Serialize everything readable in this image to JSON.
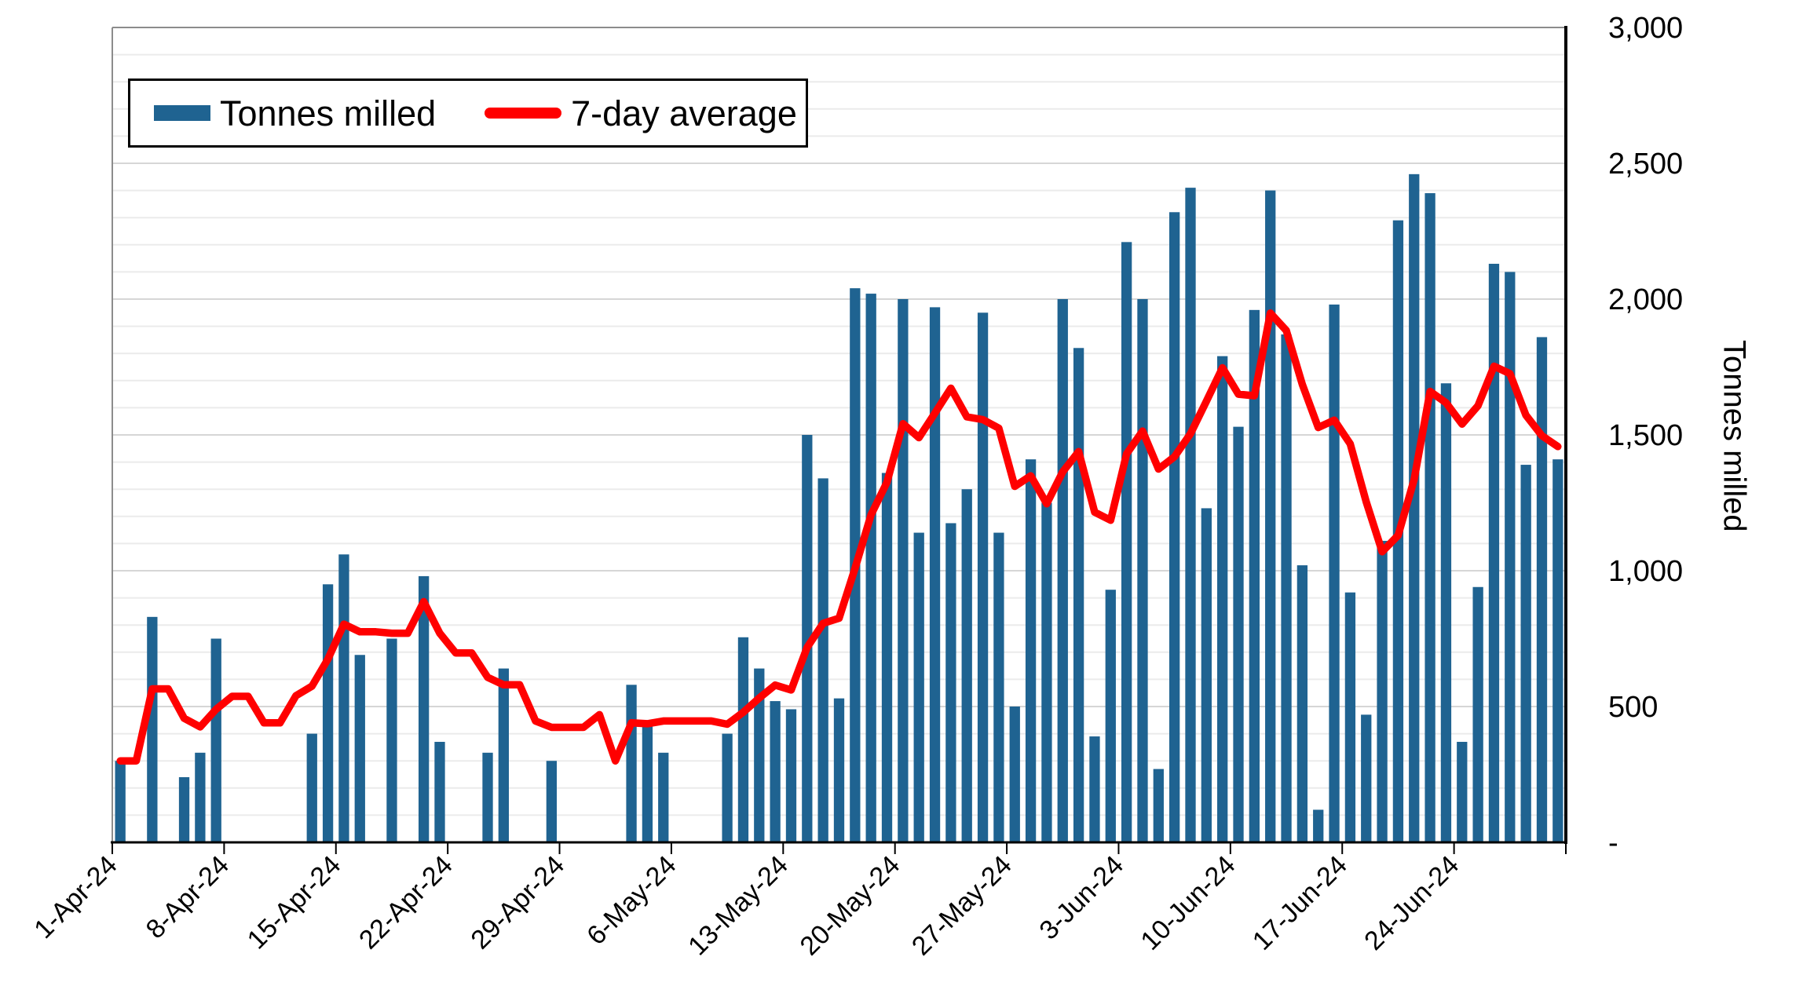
{
  "chart_data": {
    "type": "bar",
    "subtype": "daily bar chart with 7-day moving average line overlay",
    "title": "",
    "x_axis": {
      "tick_labels": [
        "1-Apr-24",
        "8-Apr-24",
        "15-Apr-24",
        "22-Apr-24",
        "29-Apr-24",
        "6-May-24",
        "13-May-24",
        "20-May-24",
        "27-May-24",
        "3-Jun-24",
        "10-Jun-24",
        "17-Jun-24",
        "24-Jun-24"
      ],
      "label_rotation_deg": -45,
      "num_days": 91
    },
    "y_axis": {
      "title": "Tonnes milled",
      "side": "right",
      "min": 0,
      "max": 3000,
      "major_step": 500,
      "minor_step": 100,
      "tick_labels": [
        "3,000",
        "2,500",
        "2,000",
        "1,500",
        "1,000",
        "500",
        "-"
      ],
      "zero_label": "-"
    },
    "grid": "horizontal minor lines every 100, slightly darker every 500",
    "legend_position": "top-left inside plot, boxed",
    "legend_items": [
      {
        "label": "Tonnes milled",
        "swatch": "bar",
        "color": "#1F6391"
      },
      {
        "label": "7-day average",
        "swatch": "line",
        "color": "#FF0000"
      }
    ],
    "dates": [
      "1-Apr-24",
      "2-Apr-24",
      "3-Apr-24",
      "4-Apr-24",
      "5-Apr-24",
      "6-Apr-24",
      "7-Apr-24",
      "8-Apr-24",
      "9-Apr-24",
      "10-Apr-24",
      "11-Apr-24",
      "12-Apr-24",
      "13-Apr-24",
      "14-Apr-24",
      "15-Apr-24",
      "16-Apr-24",
      "17-Apr-24",
      "18-Apr-24",
      "19-Apr-24",
      "20-Apr-24",
      "21-Apr-24",
      "22-Apr-24",
      "23-Apr-24",
      "24-Apr-24",
      "25-Apr-24",
      "26-Apr-24",
      "27-Apr-24",
      "28-Apr-24",
      "29-Apr-24",
      "30-Apr-24",
      "1-May-24",
      "2-May-24",
      "3-May-24",
      "4-May-24",
      "5-May-24",
      "6-May-24",
      "7-May-24",
      "8-May-24",
      "9-May-24",
      "10-May-24",
      "11-May-24",
      "12-May-24",
      "13-May-24",
      "14-May-24",
      "15-May-24",
      "16-May-24",
      "17-May-24",
      "18-May-24",
      "19-May-24",
      "20-May-24",
      "21-May-24",
      "22-May-24",
      "23-May-24",
      "24-May-24",
      "25-May-24",
      "26-May-24",
      "27-May-24",
      "28-May-24",
      "29-May-24",
      "30-May-24",
      "31-May-24",
      "1-Jun-24",
      "2-Jun-24",
      "3-Jun-24",
      "4-Jun-24",
      "5-Jun-24",
      "6-Jun-24",
      "7-Jun-24",
      "8-Jun-24",
      "9-Jun-24",
      "10-Jun-24",
      "11-Jun-24",
      "12-Jun-24",
      "13-Jun-24",
      "14-Jun-24",
      "15-Jun-24",
      "16-Jun-24",
      "17-Jun-24",
      "18-Jun-24",
      "19-Jun-24",
      "20-Jun-24",
      "21-Jun-24",
      "22-Jun-24",
      "23-Jun-24",
      "24-Jun-24",
      "25-Jun-24",
      "26-Jun-24",
      "27-Jun-24",
      "28-Jun-24",
      "29-Jun-24",
      "30-Jun-24"
    ],
    "series": [
      {
        "name": "Tonnes milled",
        "type": "bar",
        "color": "#1F6391",
        "values": [
          300,
          0,
          830,
          0,
          240,
          330,
          750,
          0,
          0,
          0,
          0,
          0,
          400,
          950,
          1060,
          690,
          0,
          750,
          0,
          980,
          370,
          0,
          0,
          330,
          640,
          0,
          0,
          300,
          0,
          0,
          0,
          0,
          580,
          430,
          330,
          0,
          0,
          0,
          400,
          755,
          640,
          520,
          490,
          1500,
          1340,
          530,
          2040,
          2020,
          1360,
          2000,
          1140,
          1970,
          1175,
          1300,
          1950,
          1140,
          500,
          1410,
          1250,
          2000,
          1820,
          390,
          930,
          2210,
          2000,
          270,
          2320,
          2410,
          1230,
          1790,
          1530,
          1960,
          2400,
          1870,
          1020,
          120,
          1980,
          920,
          470,
          1110,
          2290,
          2460,
          2390,
          1690,
          370,
          940,
          2130,
          2100,
          1390,
          1860,
          1410
        ]
      },
      {
        "name": "7-day average",
        "type": "line",
        "color": "#FF0000",
        "values": [
          300,
          300,
          565,
          565,
          456.7,
          425,
          490,
          537.5,
          537.5,
          440,
          440,
          540,
          575,
          675,
          803.3,
          775,
          775,
          770,
          770,
          886,
          770,
          697.5,
          697.5,
          607.5,
          580,
          580,
          446.7,
          423.3,
          423.3,
          423.3,
          470,
          300,
          440,
          436.7,
          446.7,
          446.7,
          446.7,
          446.7,
          435,
          478.8,
          531.3,
          578.8,
          561,
          717.5,
          806.4,
          825,
          1008.6,
          1205.7,
          1325.7,
          1541.4,
          1490,
          1580,
          1672.1,
          1566.4,
          1556.4,
          1525,
          1310.7,
          1349.3,
          1246.4,
          1364.3,
          1438.6,
          1215.7,
          1185.7,
          1430,
          1514.3,
          1374.3,
          1420,
          1504.3,
          1624.3,
          1747.1,
          1650,
          1644.3,
          1948.6,
          1884.3,
          1685.7,
          1527.1,
          1554.3,
          1467.1,
          1254.3,
          1070,
          1130,
          1335.7,
          1660,
          1618.6,
          1540,
          1607.1,
          1752.9,
          1725.7,
          1572.9,
          1497.1,
          1457.1
        ]
      }
    ],
    "colors": {
      "bar": "#1F6391",
      "line": "#FF0000",
      "grid_minor": "#EBEBEB",
      "grid_major": "#D6D6D6",
      "plot_border": "#8C8C8C",
      "axis_line": "#000000",
      "text": "#000000"
    }
  }
}
